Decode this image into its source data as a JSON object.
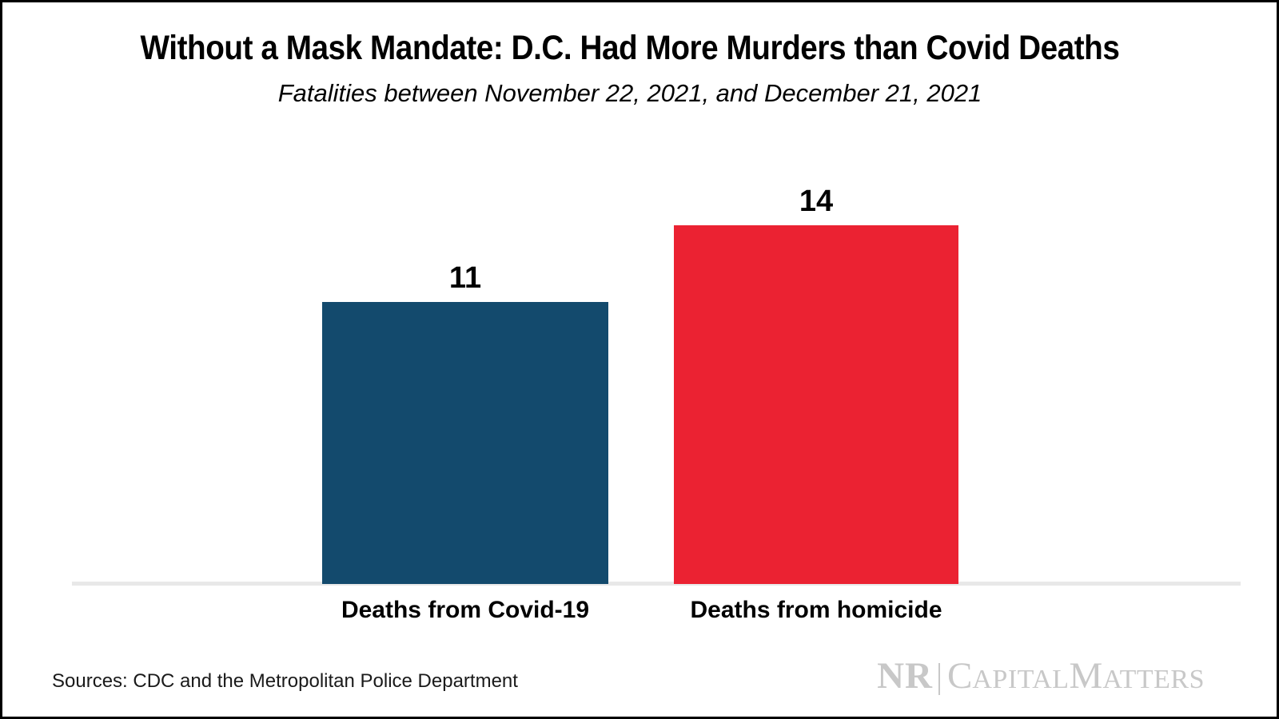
{
  "chart_data": {
    "type": "bar",
    "orientation": "vertical",
    "title": "Without a Mask Mandate: D.C. Had More Murders than Covid Deaths",
    "subtitle": "Fatalities between November 22, 2021, and December 21, 2021",
    "categories": [
      "Deaths from Covid-19",
      "Deaths from homicide"
    ],
    "values": [
      11,
      14
    ],
    "value_labels": [
      "11",
      "14"
    ],
    "bar_colors": [
      "#134A6D",
      "#EB2232"
    ],
    "ylim": [
      0,
      14
    ],
    "grid": false,
    "legend": false,
    "axis_line_color": "#E8E8E8"
  },
  "footer": {
    "source": "Sources: CDC and the Metropolitan Police Department",
    "logo": {
      "nr": "NR",
      "capital_initial": "C",
      "capital_rest": "APITAL",
      "matters_initial": "M",
      "matters_rest": "ATTERS",
      "color": "#C8C8C8"
    }
  },
  "colors": {
    "background": "#FFFFFF",
    "border": "#000000",
    "text": "#000000"
  }
}
